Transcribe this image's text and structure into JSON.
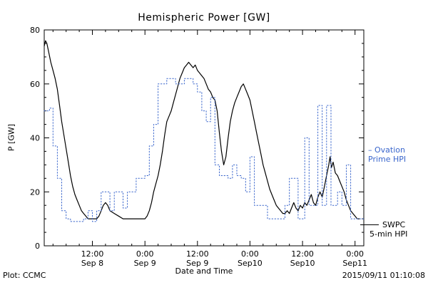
{
  "footer": {
    "left": "Plot: CCMC",
    "right": "2015/09/11 01:10:08"
  },
  "legend": {
    "ovation": {
      "line1": "– Ovation",
      "line2": "Prime HPI"
    },
    "swpc": {
      "line1": "SWPC",
      "line2": "5-min HPI"
    }
  },
  "colors": {
    "ovation": "#3a66cc",
    "swpc": "#000000",
    "axis": "#000000",
    "background": "#ffffff"
  },
  "chart_data": {
    "type": "line",
    "title": "Hemispheric Power [GW]",
    "xlabel": "Date and Time",
    "ylabel": "P [GW]",
    "ylim": [
      0,
      80
    ],
    "xlim_hours": [
      1,
      74
    ],
    "x_unit": "hours since 2015-09-08 00:00 UT",
    "grid": false,
    "legend_position": "right-margin",
    "x_ticks": [
      {
        "h": 12,
        "top": "12:00",
        "bottom": "Sep 8"
      },
      {
        "h": 24,
        "top": "0:00",
        "bottom": "Sep 9"
      },
      {
        "h": 36,
        "top": "12:00",
        "bottom": "Sep 9"
      },
      {
        "h": 48,
        "top": "0:00",
        "bottom": "Sep10"
      },
      {
        "h": 60,
        "top": "12:00",
        "bottom": "Sep10"
      },
      {
        "h": 72,
        "top": "0:00",
        "bottom": "Sep11"
      }
    ],
    "y_ticks": [
      {
        "v": 0,
        "label": "0"
      },
      {
        "v": 20,
        "label": "20"
      },
      {
        "v": 40,
        "label": "40"
      },
      {
        "v": 60,
        "label": "60"
      },
      {
        "v": 80,
        "label": "80"
      }
    ],
    "series": [
      {
        "name": "SWPC 5-min HPI",
        "color": "#000000",
        "style": "solid",
        "step": false,
        "x": [
          1,
          1.3,
          1.6,
          2,
          2.5,
          3,
          3.5,
          4,
          4.5,
          5,
          5.5,
          6,
          6.5,
          7,
          7.5,
          8,
          8.5,
          9,
          9.5,
          10,
          10.5,
          11,
          12,
          13,
          13.5,
          14,
          14.5,
          15,
          15.5,
          16,
          17,
          18,
          19,
          20,
          21,
          22,
          23,
          24,
          24.5,
          25,
          25.5,
          26,
          26.5,
          27,
          27.5,
          28,
          28.5,
          29,
          29.5,
          30,
          30.5,
          31,
          31.5,
          32,
          32.5,
          33,
          33.5,
          34,
          34.5,
          35,
          35.5,
          36,
          36.5,
          37,
          37.5,
          38,
          38.5,
          39,
          39.5,
          40,
          40.5,
          41,
          41.5,
          42,
          42.5,
          43,
          43.5,
          44,
          44.5,
          45,
          45.5,
          46,
          46.5,
          47,
          47.5,
          48,
          48.5,
          49,
          49.5,
          50,
          50.5,
          51,
          51.5,
          52,
          52.5,
          53,
          53.5,
          54,
          54.5,
          55,
          55.5,
          56,
          56.5,
          57,
          57.5,
          58,
          58.5,
          59,
          59.5,
          60,
          60.5,
          61,
          61.5,
          62,
          62.5,
          63,
          63.5,
          64,
          64.5,
          65,
          65.5,
          66,
          66.3,
          66.6,
          67,
          67.5,
          68,
          68.5,
          69,
          69.5,
          70,
          70.5,
          71,
          71.5,
          72,
          72.5,
          73
        ],
        "y": [
          74,
          76,
          75,
          72,
          68,
          65,
          62,
          58,
          52,
          46,
          41,
          36,
          31,
          26,
          22,
          19,
          17,
          15,
          13,
          12,
          11,
          10,
          10,
          10,
          11,
          13,
          15,
          16,
          15,
          13,
          12,
          11,
          10,
          10,
          10,
          10,
          10,
          10,
          11,
          13,
          16,
          20,
          23,
          26,
          30,
          35,
          41,
          46,
          48,
          50,
          53,
          56,
          59,
          62,
          64,
          66,
          67,
          68,
          67,
          66,
          67,
          65,
          64,
          63,
          62,
          60,
          58,
          57,
          55,
          54,
          50,
          42,
          35,
          30,
          33,
          40,
          46,
          50,
          53,
          55,
          57,
          59,
          60,
          58,
          56,
          54,
          50,
          46,
          42,
          38,
          34,
          30,
          27,
          24,
          21,
          19,
          17,
          15,
          14,
          13,
          12,
          12,
          13,
          12,
          14,
          16,
          14,
          13,
          15,
          14,
          16,
          15,
          17,
          19,
          16,
          15,
          18,
          20,
          18,
          22,
          26,
          30,
          33,
          29,
          31,
          27,
          26,
          24,
          22,
          20,
          17,
          15,
          13,
          12,
          11,
          10,
          10
        ]
      },
      {
        "name": "Ovation Prime HPI",
        "color": "#3a66cc",
        "style": "dotted",
        "step": true,
        "x": [
          1,
          2.2,
          3,
          4,
          5,
          6,
          7,
          10,
          11,
          12,
          13,
          14,
          16,
          17,
          19,
          20,
          22,
          24,
          25,
          26,
          27,
          29,
          31,
          33,
          35,
          36,
          37,
          38,
          39,
          40,
          41,
          43,
          44,
          45,
          46,
          47,
          48,
          49,
          52,
          56,
          57,
          59,
          60.5,
          61.5,
          63.5,
          64.5,
          65.5,
          66.5,
          68,
          69,
          70,
          71,
          74
        ],
        "y": [
          50,
          51,
          37,
          25,
          13,
          10,
          9,
          10,
          13,
          9,
          13,
          20,
          13,
          20,
          14,
          20,
          25,
          26,
          37,
          45,
          60,
          62,
          60,
          62,
          60,
          57,
          50,
          46,
          55,
          30,
          26,
          25,
          30,
          26,
          25,
          20,
          33,
          15,
          10,
          15,
          25,
          10,
          40,
          15,
          52,
          15,
          52,
          15,
          20,
          15,
          30,
          10,
          10
        ]
      }
    ]
  }
}
